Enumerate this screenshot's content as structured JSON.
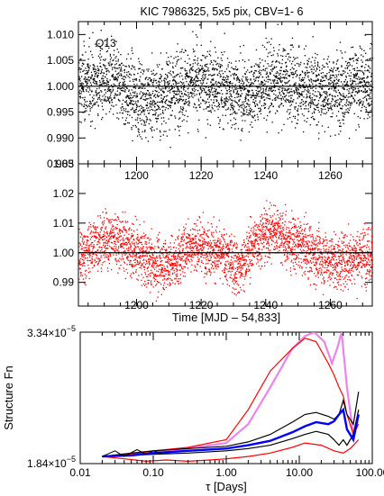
{
  "chart_data": [
    {
      "type": "scatter",
      "title": "KIC 7986325,  5x5 pix, CBV=1- 6",
      "annotation": "Q13",
      "xlim": [
        1182,
        1273
      ],
      "ylim": [
        0.985,
        1.0125
      ],
      "yticks": [
        0.985,
        0.99,
        0.995,
        1.0,
        1.005,
        1.01
      ],
      "ytick_labels": [
        "0.985",
        "0.990",
        "0.995",
        "1.000",
        "1.005",
        "1.010"
      ],
      "xticks": [
        1200,
        1220,
        1240,
        1260
      ],
      "reference_line": 1.0,
      "series": [
        {
          "color": "#000000",
          "scatter_sigma": 0.0035,
          "trend_x": [
            1182,
            1190,
            1200,
            1205,
            1212,
            1220,
            1228,
            1234,
            1240,
            1246,
            1250,
            1258,
            1266,
            1273
          ],
          "trend_y": [
            1.0,
            1.0015,
            0.998,
            0.9975,
            1.0,
            1.001,
            0.9995,
            0.9985,
            1.0005,
            1.001,
            1.0,
            0.9995,
            1.0,
            1.0005
          ]
        }
      ]
    },
    {
      "type": "scatter",
      "xlim": [
        1182,
        1273
      ],
      "ylim": [
        0.982,
        1.03
      ],
      "yticks": [
        0.99,
        1.0,
        1.01,
        1.02,
        1.03
      ],
      "ytick_labels": [
        "0.99",
        "1.00",
        "1.01",
        "1.02",
        "1.03"
      ],
      "xticks": [
        1200,
        1220,
        1240,
        1260
      ],
      "xtick_labels": [
        "1200",
        "1220",
        "1240",
        "1260"
      ],
      "xlabel": "Time [MJD – 54,833]",
      "reference_line": 1.0,
      "series": [
        {
          "color": "#ff0000",
          "scatter_sigma": 0.0045,
          "trend_x": [
            1182,
            1188,
            1194,
            1200,
            1206,
            1212,
            1216,
            1222,
            1228,
            1232,
            1236,
            1240,
            1244,
            1246,
            1250,
            1256,
            1262,
            1268,
            1273
          ],
          "trend_y": [
            0.998,
            1.004,
            1.005,
            1.0,
            0.996,
            0.997,
            1.003,
            1.002,
            0.998,
            0.995,
            1.003,
            1.007,
            1.008,
            1.004,
            1.003,
            0.999,
            0.997,
            0.999,
            1.0
          ]
        }
      ]
    },
    {
      "type": "line",
      "xlabel": "τ [Days]",
      "ylabel": "Structure Fn",
      "xscale": "log",
      "yscale": "log",
      "xlim": [
        0.01,
        100
      ],
      "ylim": [
        1.84e-05,
        3.34e-05
      ],
      "xticks": [
        0.01,
        0.1,
        1,
        10,
        100
      ],
      "xtick_labels": [
        "0.01",
        "0.10",
        "1.00",
        "10.00",
        "100.00"
      ],
      "ytick_labels": {
        "bottom": {
          "mantissa": "1.84×10",
          "exponent": "−5"
        },
        "top": {
          "mantissa": "3.34×10",
          "exponent": "−5"
        }
      },
      "series": [
        {
          "color": "#ee82ee",
          "width": 2.2,
          "x": [
            0.02,
            0.05,
            0.1,
            0.3,
            1,
            2,
            4,
            8,
            12,
            16,
            22,
            28,
            33,
            38,
            45,
            55,
            65
          ],
          "y": [
            1.9e-05,
            1.92e-05,
            1.94e-05,
            1.97e-05,
            2.02e-05,
            2.2e-05,
            2.6e-05,
            3.1e-05,
            3.28e-05,
            3.34e-05,
            3.2e-05,
            2.9e-05,
            3.1e-05,
            3.34e-05,
            2.6e-05,
            2.1e-05,
            2.3e-05
          ]
        },
        {
          "color": "#ff0000",
          "width": 1.2,
          "x": [
            0.02,
            0.05,
            0.1,
            0.3,
            1,
            2,
            4,
            8,
            12,
            17,
            25,
            30,
            35,
            40,
            45,
            55,
            65
          ],
          "y": [
            1.9e-05,
            1.92e-05,
            1.95e-05,
            1.98e-05,
            2.05e-05,
            2.35e-05,
            2.8e-05,
            3.1e-05,
            3.25e-05,
            3.2e-05,
            2.9e-05,
            2.75e-05,
            2.6e-05,
            2.5e-05,
            2.3e-05,
            2.1e-05,
            2.2e-05
          ]
        },
        {
          "color": "#ff0000",
          "width": 1.2,
          "x": [
            0.02,
            0.04,
            0.08,
            0.15,
            0.3,
            0.6,
            1,
            2,
            4,
            8,
            12,
            20,
            30,
            40,
            50,
            65
          ],
          "y": [
            1.9e-05,
            1.88e-05,
            1.86e-05,
            1.87e-05,
            1.86e-05,
            1.87e-05,
            1.88e-05,
            1.9e-05,
            1.93e-05,
            1.98e-05,
            2.02e-05,
            2e-05,
            1.95e-05,
            1.93e-05,
            1.97e-05,
            2.05e-05
          ]
        },
        {
          "color": "#000000",
          "width": 1.2,
          "x": [
            0.02,
            0.05,
            0.1,
            0.3,
            1,
            2,
            4,
            8,
            12,
            17,
            25,
            30,
            35,
            40,
            45,
            55,
            65
          ],
          "y": [
            1.9e-05,
            1.93e-05,
            1.95e-05,
            1.97e-05,
            1.99e-05,
            2.03e-05,
            2.1e-05,
            2.22e-05,
            2.3e-05,
            2.32e-05,
            2.28e-05,
            2.25e-05,
            2.3e-05,
            2.45e-05,
            2.3e-05,
            2.2e-05,
            2.55e-05
          ]
        },
        {
          "color": "#000000",
          "width": 1.2,
          "x": [
            0.02,
            0.05,
            0.1,
            0.3,
            1,
            2,
            4,
            8,
            12,
            17,
            25,
            30,
            35,
            40,
            45,
            55,
            65
          ],
          "y": [
            1.9e-05,
            1.91e-05,
            1.92e-05,
            1.93e-05,
            1.95e-05,
            1.97e-05,
            2e-05,
            2.06e-05,
            2.1e-05,
            2.13e-05,
            2.1e-05,
            2.05e-05,
            2e-05,
            2.05e-05,
            2e-05,
            2.1e-05,
            2.35e-05
          ]
        },
        {
          "color": "#0000ff",
          "width": 2.4,
          "x": [
            0.02,
            0.05,
            0.1,
            0.3,
            1,
            2,
            4,
            8,
            12,
            17,
            25,
            30,
            35,
            40,
            45,
            55,
            65
          ],
          "y": [
            1.9e-05,
            1.91e-05,
            1.93e-05,
            1.95e-05,
            1.97e-05,
            2e-05,
            2.04e-05,
            2.12e-05,
            2.18e-05,
            2.22e-05,
            2.2e-05,
            2.23e-05,
            2.3e-05,
            2.35e-05,
            2.15e-05,
            2.05e-05,
            2.3e-05
          ]
        },
        {
          "color": "#000000",
          "width": 1.0,
          "x": [
            0.02,
            0.03,
            0.04,
            0.06,
            0.08,
            0.1,
            0.13
          ],
          "y": [
            1.9e-05,
            1.95e-05,
            1.9e-05,
            1.96e-05,
            1.92e-05,
            1.95e-05,
            1.93e-05
          ]
        }
      ]
    }
  ]
}
